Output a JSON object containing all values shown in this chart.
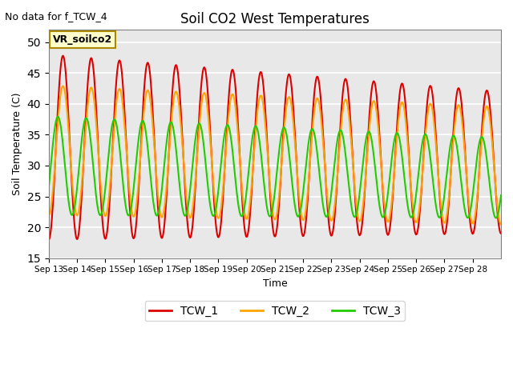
{
  "title": "Soil CO2 West Temperatures",
  "xlabel": "Time",
  "ylabel": "Soil Temperature (C)",
  "ylim": [
    15,
    52
  ],
  "yticks": [
    15,
    20,
    25,
    30,
    35,
    40,
    45,
    50
  ],
  "note": "No data for f_TCW_4",
  "annotation": "VR_soilco2",
  "background_color": "#e8e8e8",
  "grid_color": "white",
  "series": {
    "TCW_1": {
      "color": "#dd0000",
      "lw": 1.5
    },
    "TCW_2": {
      "color": "#ffa500",
      "lw": 1.5
    },
    "TCW_3": {
      "color": "#22cc00",
      "lw": 1.5
    }
  },
  "x_tick_labels": [
    "Sep 13",
    "Sep 14",
    "Sep 15",
    "Sep 16",
    "Sep 17",
    "Sep 18",
    "Sep 19",
    "Sep 20",
    "Sep 21",
    "Sep 22",
    "Sep 23",
    "Sep 24",
    "Sep 25",
    "Sep 26",
    "Sep 27",
    "Sep 28"
  ],
  "n_days": 16,
  "start_day": 13
}
